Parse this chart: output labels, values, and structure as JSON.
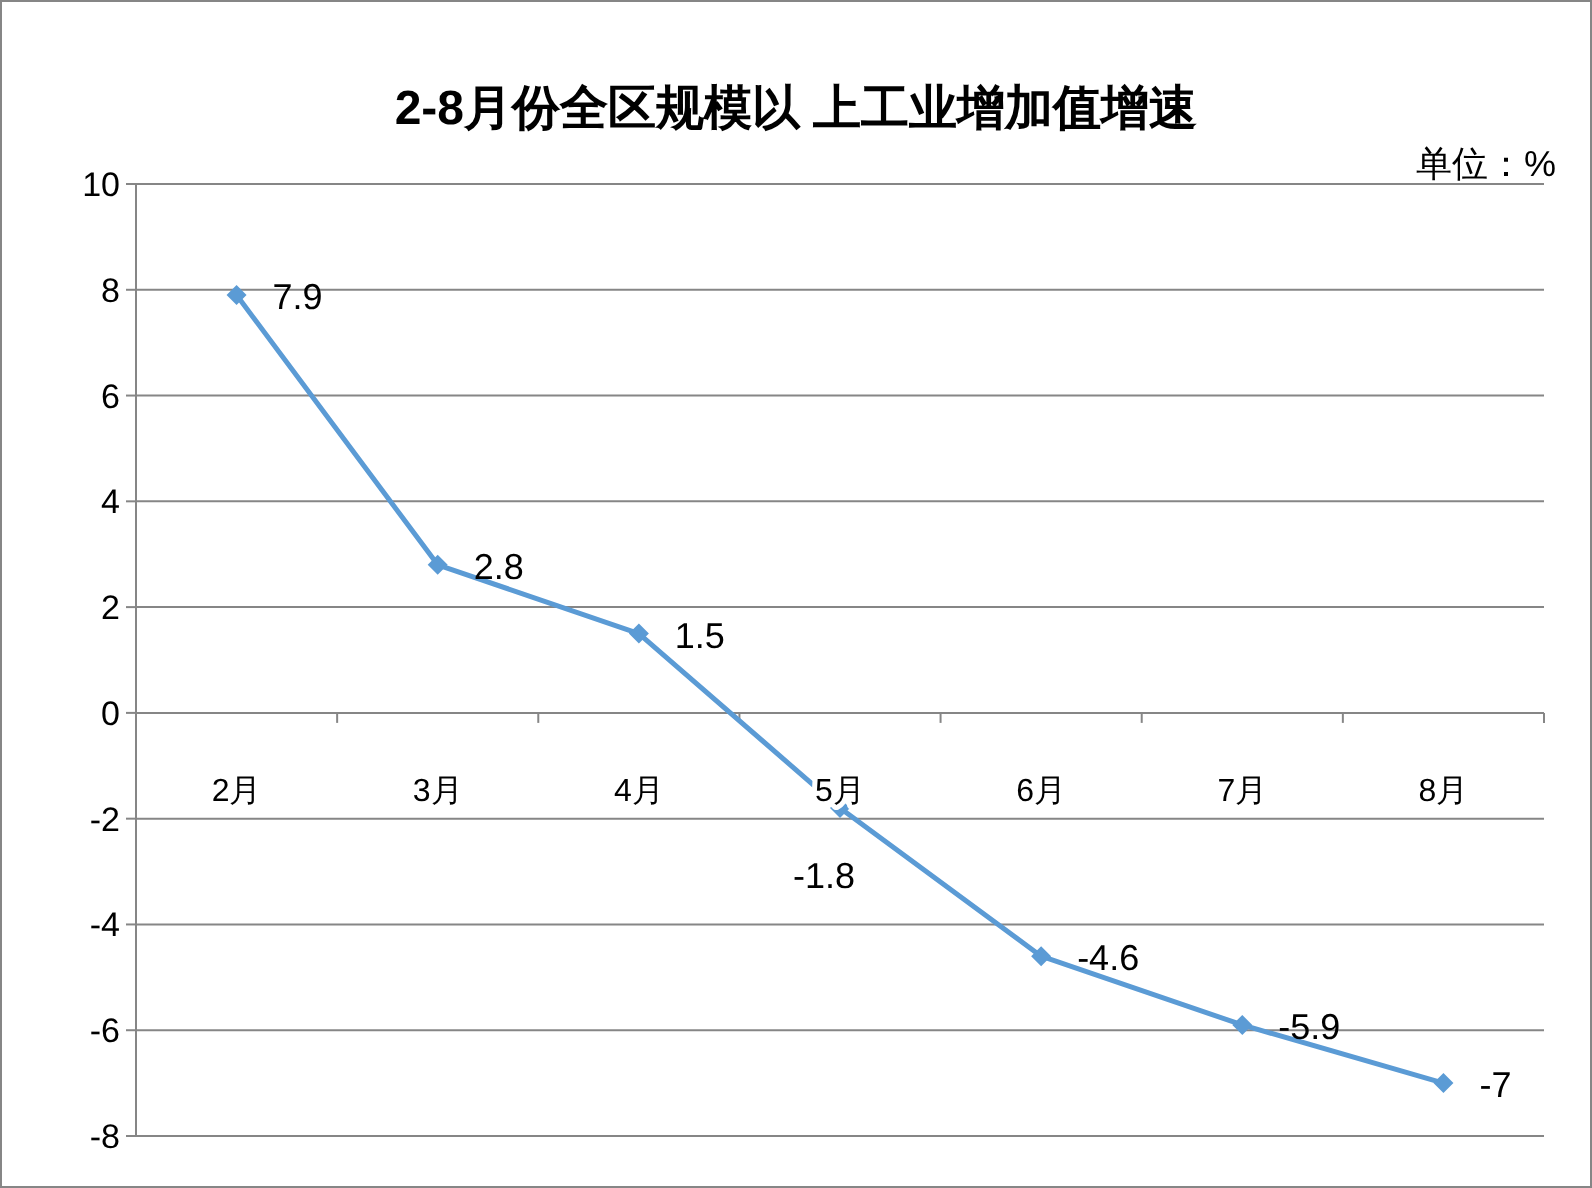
{
  "chart_data": {
    "type": "line",
    "title": "2-8月份全区规模以 上工业增加值增速",
    "annotations": [
      "单位：%"
    ],
    "categories": [
      "2月",
      "3月",
      "4月",
      "5月",
      "6月",
      "7月",
      "8月"
    ],
    "series": [
      {
        "color": "#5b9bd5",
        "values": [
          7.9,
          2.8,
          1.5,
          -1.8,
          -4.6,
          -5.9,
          -7
        ]
      }
    ],
    "ylim": [
      -8,
      10
    ],
    "yticks": [
      -8,
      -6,
      -4,
      -2,
      0,
      2,
      4,
      6,
      8,
      10
    ],
    "grid": "y",
    "marker": "diamond",
    "line_style": "solid",
    "data_labels": true
  }
}
